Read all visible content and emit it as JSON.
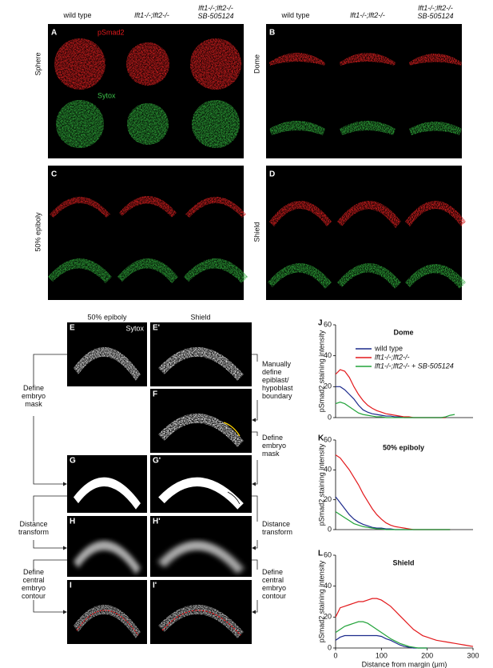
{
  "figure": {
    "header_left": [
      [
        "wild type"
      ],
      [
        "lft1-/-;lft2-/-"
      ],
      [
        "lft1-/-;lft2-/-",
        "SB-505124"
      ]
    ],
    "header_right": [
      [
        "wild type"
      ],
      [
        "lft1-/-;lft2-/-"
      ],
      [
        "lft1-/-;lft2-/-",
        "SB-505124"
      ]
    ],
    "panels": [
      {
        "letter": "A",
        "stage": "Sphere",
        "stains": [
          "pSmad2",
          "Sytox"
        ]
      },
      {
        "letter": "B",
        "stage": "Dome"
      },
      {
        "letter": "C",
        "stage": "50% epiboly"
      },
      {
        "letter": "D",
        "stage": "Shield"
      }
    ]
  },
  "pipeline": {
    "columns": [
      "50% epiboly",
      "Shield"
    ],
    "panels": [
      "E",
      "E'",
      "F",
      "G",
      "G'",
      "H",
      "H'",
      "I",
      "I'"
    ],
    "stain": "Sytox",
    "steps_left": [
      [
        "Define",
        "embryo",
        "mask"
      ],
      [
        "Distance",
        "transform"
      ],
      [
        "Define",
        "central",
        "embryo",
        "contour"
      ]
    ],
    "steps_right": [
      [
        "Manually",
        "define",
        "epiblast/",
        "hypoblast",
        "boundary"
      ],
      [
        "Define",
        "embryo",
        "mask"
      ],
      [
        "Distance",
        "transform"
      ],
      [
        "Define",
        "central",
        "embryo",
        "contour"
      ]
    ]
  },
  "chart_data": [
    {
      "type": "line",
      "label": "J",
      "title": "Dome",
      "ylabel": "pSmad2 staining intensity",
      "x": [
        0,
        10,
        20,
        30,
        40,
        50,
        60,
        70,
        80,
        90,
        100,
        110,
        120,
        130,
        140,
        150,
        160,
        170,
        180,
        190,
        200,
        210,
        220,
        230,
        240,
        250,
        260,
        270,
        280,
        290,
        300
      ],
      "xlim": [
        0,
        300
      ],
      "ylim": [
        0,
        60
      ],
      "yticks": [
        0,
        20,
        40,
        60
      ],
      "legend": "upper right",
      "series": [
        {
          "name": "wild type",
          "color": "#1c2a8c",
          "values": [
            20,
            20,
            18,
            15,
            12,
            8,
            5,
            3.5,
            2.5,
            2,
            1.5,
            1,
            1,
            0.5,
            0.5,
            0,
            0,
            0,
            0,
            0,
            0,
            0,
            0,
            0,
            0,
            null,
            null,
            null,
            null,
            null,
            null
          ]
        },
        {
          "name": "lft1-/-;lft2-/-",
          "color": "#e3191c",
          "values": [
            28,
            31,
            30,
            26,
            20,
            15,
            11,
            8,
            6,
            4.5,
            3.5,
            2.5,
            2,
            1.5,
            1,
            0.5,
            0.5,
            0,
            0,
            0,
            0,
            0,
            0,
            0,
            0,
            null,
            null,
            null,
            null,
            null,
            null
          ]
        },
        {
          "name": "lft1-/-;lft2-/- + SB-505124",
          "color": "#22a33a",
          "values": [
            9,
            10,
            9,
            7,
            5,
            3,
            2,
            1.5,
            1,
            0.5,
            0.5,
            0,
            0,
            0,
            0,
            0,
            0,
            0,
            0,
            0,
            0,
            0,
            0,
            0,
            0.5,
            1.5,
            2,
            null,
            null,
            null,
            null
          ]
        }
      ]
    },
    {
      "type": "line",
      "label": "K",
      "title": "50% epiboly",
      "ylabel": "pSmad2 staining intensity",
      "x": [
        0,
        10,
        20,
        30,
        40,
        50,
        60,
        70,
        80,
        90,
        100,
        110,
        120,
        130,
        140,
        150,
        160,
        170,
        180,
        190,
        200,
        210,
        220,
        230,
        240,
        250,
        260,
        270,
        280,
        290,
        300
      ],
      "xlim": [
        0,
        300
      ],
      "ylim": [
        0,
        60
      ],
      "yticks": [
        0,
        20,
        40,
        60
      ],
      "series": [
        {
          "color": "#1c2a8c",
          "values": [
            22,
            18,
            14,
            10,
            7,
            5,
            3.5,
            2.5,
            1.5,
            1,
            1,
            0.5,
            0.5,
            0,
            0,
            0,
            0,
            0,
            0,
            0,
            0,
            0,
            0,
            0,
            0,
            0,
            null,
            null,
            null,
            null,
            null
          ]
        },
        {
          "color": "#e3191c",
          "values": [
            50,
            48,
            44,
            40,
            35,
            30,
            24,
            19,
            14,
            10,
            7,
            4.5,
            3,
            2,
            1.5,
            1,
            0.5,
            0,
            0,
            0,
            0,
            0,
            0,
            0,
            0,
            0,
            null,
            null,
            null,
            null,
            null
          ]
        },
        {
          "color": "#22a33a",
          "values": [
            12,
            10,
            8,
            6,
            4,
            3,
            2,
            1.5,
            1,
            0.5,
            0.5,
            0,
            0,
            0,
            0,
            0,
            0,
            0,
            0,
            0,
            0,
            0,
            0,
            0,
            0,
            0,
            null,
            null,
            null,
            null,
            null
          ]
        }
      ]
    },
    {
      "type": "line",
      "label": "L",
      "title": "Shield",
      "ylabel": "pSmad2 staining intensity",
      "xlabel": "Distance from margin (μm)",
      "x": [
        0,
        10,
        20,
        30,
        40,
        50,
        60,
        70,
        80,
        90,
        100,
        110,
        120,
        130,
        140,
        150,
        160,
        170,
        180,
        190,
        200,
        210,
        220,
        230,
        240,
        250,
        260,
        270,
        280,
        290,
        300
      ],
      "xlim": [
        0,
        300
      ],
      "xticks": [
        0,
        100,
        200,
        300
      ],
      "ylim": [
        0,
        60
      ],
      "yticks": [
        0,
        20,
        40,
        60
      ],
      "series": [
        {
          "color": "#1c2a8c",
          "values": [
            5,
            7,
            8,
            8,
            8,
            8,
            8,
            8,
            8,
            8,
            7.5,
            6,
            5,
            3.5,
            2,
            1,
            0.5,
            0,
            0,
            0,
            0,
            null,
            null,
            null,
            null,
            null,
            null,
            null,
            null,
            null,
            null
          ]
        },
        {
          "color": "#e3191c",
          "values": [
            20,
            26,
            27,
            28,
            29,
            30,
            30,
            31,
            32,
            32,
            31,
            29,
            27,
            24,
            21,
            18,
            15,
            12,
            10,
            8,
            7,
            6,
            5,
            4.5,
            4,
            3.5,
            3,
            2.5,
            2,
            1.5,
            1
          ]
        },
        {
          "color": "#22a33a",
          "values": [
            10,
            12,
            14,
            15,
            16,
            17,
            17,
            16,
            14,
            12,
            10,
            8,
            6,
            4.5,
            3,
            2,
            1,
            0.5,
            0,
            0,
            0,
            null,
            null,
            null,
            null,
            null,
            null,
            null,
            null,
            null,
            null
          ]
        }
      ]
    }
  ]
}
